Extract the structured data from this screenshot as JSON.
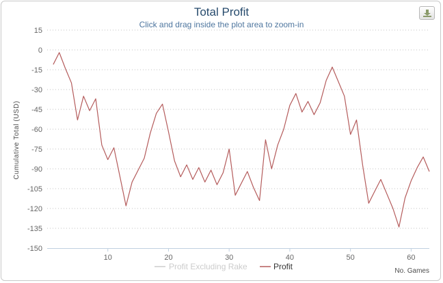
{
  "header": {
    "title": "Total Profit",
    "subtitle": "Click and drag inside the plot area to zoom-in"
  },
  "toolbar": {
    "export_icon": "download-icon"
  },
  "colors": {
    "profit": "#b45b5b",
    "profit_excluding_rake": "#cccccc",
    "grid": "#c0c0c0",
    "title": "#274b6d"
  },
  "chart_data": {
    "type": "line",
    "title": "Total Profit",
    "subtitle": "Click and drag inside the plot area to zoom-in",
    "xlabel": "No. Games",
    "ylabel": "Cumulative Total (USD)",
    "xlim": [
      0,
      63
    ],
    "ylim": [
      -150,
      15
    ],
    "yticks": [
      15,
      0,
      -15,
      -30,
      -45,
      -60,
      -75,
      -90,
      -105,
      -120,
      -135,
      -150
    ],
    "xticks": [
      10,
      20,
      30,
      40,
      50,
      60
    ],
    "grid": true,
    "legend_position": "bottom-center",
    "series": [
      {
        "name": "Profit Excluding Rake",
        "hidden": true,
        "values": []
      },
      {
        "name": "Profit",
        "x": [
          1,
          2,
          3,
          4,
          5,
          6,
          7,
          8,
          9,
          10,
          11,
          12,
          13,
          14,
          15,
          16,
          17,
          18,
          19,
          20,
          21,
          22,
          23,
          24,
          25,
          26,
          27,
          28,
          29,
          30,
          31,
          32,
          33,
          34,
          35,
          36,
          37,
          38,
          39,
          40,
          41,
          42,
          43,
          44,
          45,
          46,
          47,
          48,
          49,
          50,
          51,
          52,
          53,
          54,
          55,
          56,
          57,
          58,
          59,
          60,
          61,
          62,
          63
        ],
        "values": [
          -11,
          -2,
          -14,
          -25,
          -53,
          -35,
          -46,
          -37,
          -72,
          -83,
          -74,
          -96,
          -118,
          -100,
          -91,
          -82,
          -63,
          -48,
          -41,
          -62,
          -84,
          -96,
          -87,
          -98,
          -89,
          -100,
          -91,
          -102,
          -93,
          -75,
          -110,
          -101,
          -92,
          -104,
          -114,
          -68,
          -90,
          -72,
          -60,
          -42,
          -33,
          -47,
          -39,
          -49,
          -40,
          -23,
          -13,
          -24,
          -35,
          -64,
          -53,
          -87,
          -116,
          -107,
          -98,
          -109,
          -120,
          -134,
          -112,
          -99,
          -89,
          -81,
          -92
        ]
      }
    ]
  }
}
